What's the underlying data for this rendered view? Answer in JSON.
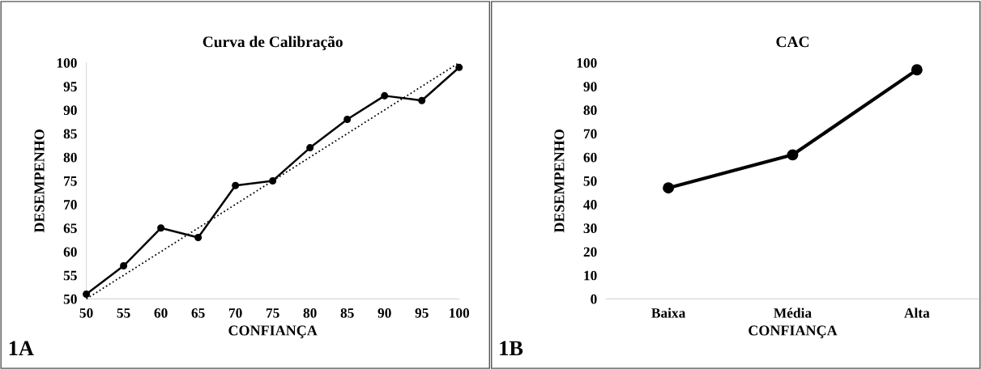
{
  "chart_data": [
    {
      "type": "line",
      "title": "Curva de Calibração",
      "xlabel": "CONFIANÇA",
      "ylabel": "DESEMPENHO",
      "annotations": [
        "1A"
      ],
      "x": [
        50,
        55,
        60,
        65,
        70,
        75,
        80,
        85,
        90,
        95,
        100
      ],
      "series": [
        {
          "color": "#000000",
          "values": [
            51,
            57,
            65,
            63,
            74,
            75,
            82,
            88,
            93,
            92,
            99
          ],
          "marker": "circle",
          "line_style": "solid"
        },
        {
          "color": "#000000",
          "x": [
            50,
            100
          ],
          "values": [
            50,
            100
          ],
          "marker": "none",
          "line_style": "dotted"
        }
      ],
      "xlim": [
        50,
        100
      ],
      "xticks": [
        50,
        55,
        60,
        65,
        70,
        75,
        80,
        85,
        90,
        95,
        100
      ],
      "ylim": [
        50,
        100
      ],
      "yticks": [
        50,
        55,
        60,
        65,
        70,
        75,
        80,
        85,
        90,
        95,
        100
      ]
    },
    {
      "type": "line",
      "title": "CAC",
      "xlabel": "CONFIANÇA",
      "ylabel": "DESEMPENHO",
      "annotations": [
        "1B"
      ],
      "categories": [
        "Baixa",
        "Média",
        "Alta"
      ],
      "series": [
        {
          "color": "#000000",
          "values": [
            47,
            61,
            97
          ],
          "marker": "circle",
          "line_style": "solid"
        }
      ],
      "ylim": [
        0,
        100
      ],
      "yticks": [
        0,
        10,
        20,
        30,
        40,
        50,
        60,
        70,
        80,
        90,
        100
      ]
    }
  ]
}
